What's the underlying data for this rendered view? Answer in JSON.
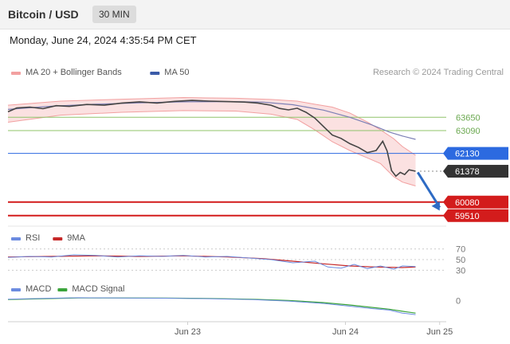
{
  "header": {
    "title": "Bitcoin / USD",
    "timeframe": "30 MIN"
  },
  "datetime": "Monday, June 24, 2024 4:35:54 PM CET",
  "watermark": "Research © 2024 Trading Central",
  "colors": {
    "price": "#444444",
    "bollinger_fill": "#f7c9c9",
    "ma50": "#7b7fb5",
    "resistance": "#8fc46a",
    "pivot": "#2c6ae0",
    "support": "#d31c1c",
    "last_price": "#333333",
    "arrow": "#2e6bc4",
    "rsi": "#6b8be0",
    "rsi_ma": "#c62828",
    "macd": "#6b8be0",
    "macd_signal": "#3aa43a"
  },
  "chart_data": [
    {
      "type": "line",
      "panel": "price",
      "legend": [
        {
          "name": "MA 20 + Bollinger Bands",
          "color": "#f2a0a0"
        },
        {
          "name": "MA 50",
          "color": "#3b5ba8"
        }
      ],
      "ylim": [
        59200,
        64900
      ],
      "x_ticks": [
        {
          "label": "Jun 23",
          "x": 0.41
        },
        {
          "label": "Jun 24",
          "x": 0.77
        },
        {
          "label": "Jun 25",
          "x": 0.985
        }
      ],
      "price": [
        [
          0.0,
          63880
        ],
        [
          0.02,
          64040
        ],
        [
          0.05,
          64080
        ],
        [
          0.08,
          64010
        ],
        [
          0.11,
          64140
        ],
        [
          0.14,
          64110
        ],
        [
          0.18,
          64190
        ],
        [
          0.22,
          64160
        ],
        [
          0.26,
          64250
        ],
        [
          0.3,
          64300
        ],
        [
          0.34,
          64250
        ],
        [
          0.38,
          64320
        ],
        [
          0.42,
          64360
        ],
        [
          0.46,
          64330
        ],
        [
          0.5,
          64310
        ],
        [
          0.54,
          64290
        ],
        [
          0.57,
          64250
        ],
        [
          0.6,
          64160
        ],
        [
          0.62,
          64020
        ],
        [
          0.64,
          63960
        ],
        [
          0.66,
          64030
        ],
        [
          0.68,
          63860
        ],
        [
          0.7,
          63620
        ],
        [
          0.72,
          63260
        ],
        [
          0.74,
          62900
        ],
        [
          0.76,
          62760
        ],
        [
          0.78,
          62540
        ],
        [
          0.8,
          62380
        ],
        [
          0.82,
          62160
        ],
        [
          0.84,
          62250
        ],
        [
          0.855,
          62640
        ],
        [
          0.865,
          62230
        ],
        [
          0.875,
          61410
        ],
        [
          0.885,
          61170
        ],
        [
          0.895,
          61330
        ],
        [
          0.905,
          61240
        ],
        [
          0.915,
          61440
        ],
        [
          0.93,
          61378
        ]
      ],
      "ma50": [
        [
          0.0,
          63980
        ],
        [
          0.1,
          64120
        ],
        [
          0.2,
          64200
        ],
        [
          0.3,
          64260
        ],
        [
          0.4,
          64300
        ],
        [
          0.5,
          64310
        ],
        [
          0.58,
          64290
        ],
        [
          0.65,
          64180
        ],
        [
          0.72,
          63950
        ],
        [
          0.78,
          63650
        ],
        [
          0.83,
          63330
        ],
        [
          0.87,
          63030
        ],
        [
          0.9,
          62860
        ],
        [
          0.93,
          62720
        ]
      ],
      "boll_upper": [
        [
          0.0,
          64160
        ],
        [
          0.12,
          64330
        ],
        [
          0.26,
          64410
        ],
        [
          0.4,
          64480
        ],
        [
          0.52,
          64450
        ],
        [
          0.6,
          64400
        ],
        [
          0.66,
          64330
        ],
        [
          0.7,
          64200
        ],
        [
          0.74,
          64080
        ],
        [
          0.78,
          63830
        ],
        [
          0.82,
          63450
        ],
        [
          0.85,
          63120
        ],
        [
          0.88,
          62750
        ],
        [
          0.9,
          62420
        ],
        [
          0.93,
          62050
        ]
      ],
      "boll_lower": [
        [
          0.0,
          63440
        ],
        [
          0.12,
          63740
        ],
        [
          0.26,
          63860
        ],
        [
          0.4,
          63930
        ],
        [
          0.52,
          63910
        ],
        [
          0.6,
          63780
        ],
        [
          0.66,
          63560
        ],
        [
          0.7,
          63120
        ],
        [
          0.74,
          62620
        ],
        [
          0.78,
          62250
        ],
        [
          0.82,
          61940
        ],
        [
          0.85,
          61700
        ],
        [
          0.88,
          61150
        ],
        [
          0.9,
          60920
        ],
        [
          0.93,
          60760
        ]
      ],
      "levels": [
        {
          "label": "63650",
          "value": 63650,
          "kind": "resistance"
        },
        {
          "label": "63090",
          "value": 63090,
          "kind": "resistance"
        },
        {
          "label": "62130",
          "value": 62130,
          "kind": "pivot"
        },
        {
          "label": "61378",
          "value": 61378,
          "kind": "last"
        },
        {
          "label": "60080",
          "value": 60080,
          "kind": "support"
        },
        {
          "label": "59510",
          "value": 59510,
          "kind": "support"
        }
      ],
      "forecast_arrow": [
        [
          0.935,
          61330
        ],
        [
          0.985,
          59720
        ]
      ]
    },
    {
      "type": "line",
      "panel": "rsi",
      "legend": [
        {
          "name": "RSI",
          "color": "#6b8be0"
        },
        {
          "name": "9MA",
          "color": "#c62828"
        }
      ],
      "ylim": [
        20,
        80
      ],
      "levels": [
        {
          "label": "70",
          "value": 70
        },
        {
          "label": "50",
          "value": 50
        },
        {
          "label": "30",
          "value": 30
        }
      ],
      "rsi": [
        [
          0.0,
          54
        ],
        [
          0.05,
          56
        ],
        [
          0.1,
          55
        ],
        [
          0.15,
          59
        ],
        [
          0.2,
          58
        ],
        [
          0.25,
          55
        ],
        [
          0.3,
          57
        ],
        [
          0.35,
          56
        ],
        [
          0.4,
          58
        ],
        [
          0.45,
          55
        ],
        [
          0.5,
          56
        ],
        [
          0.55,
          53
        ],
        [
          0.6,
          50
        ],
        [
          0.65,
          44
        ],
        [
          0.7,
          47
        ],
        [
          0.73,
          36
        ],
        [
          0.76,
          34
        ],
        [
          0.79,
          41
        ],
        [
          0.82,
          33
        ],
        [
          0.85,
          38
        ],
        [
          0.88,
          32
        ],
        [
          0.9,
          38
        ],
        [
          0.93,
          37
        ]
      ],
      "rsi_ma": [
        [
          0.0,
          55
        ],
        [
          0.1,
          56
        ],
        [
          0.2,
          57
        ],
        [
          0.3,
          56
        ],
        [
          0.4,
          57
        ],
        [
          0.5,
          55
        ],
        [
          0.58,
          52
        ],
        [
          0.65,
          47
        ],
        [
          0.72,
          42
        ],
        [
          0.78,
          38
        ],
        [
          0.84,
          36
        ],
        [
          0.9,
          35
        ],
        [
          0.93,
          36
        ]
      ]
    },
    {
      "type": "line",
      "panel": "macd",
      "legend": [
        {
          "name": "MACD",
          "color": "#6b8be0"
        },
        {
          "name": "MACD Signal",
          "color": "#3aa43a"
        }
      ],
      "ylim": [
        -3,
        1.5
      ],
      "levels": [
        {
          "label": "0",
          "value": 0
        }
      ],
      "macd": [
        [
          0.0,
          0.2
        ],
        [
          0.08,
          0.35
        ],
        [
          0.16,
          0.45
        ],
        [
          0.26,
          0.42
        ],
        [
          0.36,
          0.38
        ],
        [
          0.46,
          0.3
        ],
        [
          0.56,
          0.15
        ],
        [
          0.64,
          -0.1
        ],
        [
          0.72,
          -0.5
        ],
        [
          0.78,
          -0.95
        ],
        [
          0.83,
          -1.35
        ],
        [
          0.87,
          -1.6
        ],
        [
          0.9,
          -2.1
        ],
        [
          0.93,
          -2.35
        ]
      ],
      "macd_signal": [
        [
          0.0,
          0.15
        ],
        [
          0.08,
          0.3
        ],
        [
          0.16,
          0.42
        ],
        [
          0.26,
          0.42
        ],
        [
          0.36,
          0.4
        ],
        [
          0.46,
          0.33
        ],
        [
          0.56,
          0.2
        ],
        [
          0.64,
          0.0
        ],
        [
          0.72,
          -0.35
        ],
        [
          0.78,
          -0.75
        ],
        [
          0.83,
          -1.15
        ],
        [
          0.87,
          -1.45
        ],
        [
          0.9,
          -1.8
        ],
        [
          0.93,
          -2.1
        ]
      ]
    }
  ]
}
